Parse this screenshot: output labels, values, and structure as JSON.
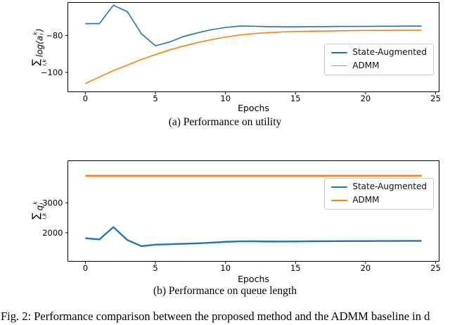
{
  "fig_caption": "Fig. 2:  Performance comparison between the proposed method and the ADMM baseline in d",
  "charts": [
    {
      "caption": "(a) Performance on utility",
      "ylabel": {
        "sigma": "∑",
        "sigma_sub": "i,k",
        "pre": "log(a",
        "sup": "k",
        "sub": "i",
        "post": ")"
      }
    },
    {
      "caption": "(b) Performance on queue length",
      "ylabel": {
        "sigma": "∑",
        "sigma_sub": "i,k",
        "pre": "q",
        "sup": "k",
        "sub": "i",
        "post": ""
      }
    }
  ],
  "chart_data": [
    {
      "type": "line",
      "title": "(a) Performance on utility",
      "xlabel": "Epochs",
      "ylabel": "sum_{i,k} log(a_i^k)",
      "x": [
        0,
        1,
        2,
        3,
        4,
        5,
        6,
        7,
        8,
        9,
        10,
        11,
        12,
        13,
        14,
        15,
        16,
        17,
        18,
        19,
        20,
        21,
        22,
        23,
        24
      ],
      "series": [
        {
          "name": "State-Augmented",
          "color": "#1f77b4",
          "linewidth": 1.6,
          "values": [
            -73.5,
            -73.5,
            -63.5,
            -67,
            -79,
            -85.5,
            -83.5,
            -80.5,
            -78.5,
            -76.8,
            -75.6,
            -74.8,
            -74.9,
            -75.1,
            -75.2,
            -75.2,
            -75.1,
            -75.1,
            -75,
            -75,
            -75,
            -74.9,
            -74.9,
            -74.8,
            -74.8
          ]
        },
        {
          "name": "ADMM",
          "color": "#ff7f0e",
          "linewidth": 1.6,
          "values": [
            -106,
            -102.5,
            -99,
            -96,
            -93,
            -90.3,
            -87.8,
            -85.7,
            -83.8,
            -82.2,
            -80.8,
            -79.7,
            -78.9,
            -78.4,
            -78,
            -77.8,
            -77.6,
            -77.5,
            -77.4,
            -77.3,
            -77.2,
            -77.2,
            -77.1,
            -77.1,
            -77
          ]
        }
      ],
      "xlim": [
        -1.25,
        25.25
      ],
      "ylim": [
        -110.5,
        -62
      ],
      "xticks": [
        0,
        5,
        10,
        15,
        20,
        25
      ],
      "xtick_labels": [
        "0",
        "5",
        "10",
        "15",
        "20",
        "25"
      ],
      "yticks": [
        -80,
        -100
      ],
      "ytick_labels": [
        "−80",
        "−100"
      ],
      "grid": false,
      "legend_position": "center right"
    },
    {
      "type": "line",
      "title": "(b) Performance on queue length",
      "xlabel": "Epochs",
      "ylabel": "sum_{i,k} q_i^k",
      "x": [
        0,
        1,
        2,
        3,
        4,
        5,
        6,
        7,
        8,
        9,
        10,
        11,
        12,
        13,
        14,
        15,
        16,
        17,
        18,
        19,
        20,
        21,
        22,
        23,
        24
      ],
      "series": [
        {
          "name": "State-Augmented",
          "color": "#1f77b4",
          "linewidth": 2.4,
          "values": [
            1820,
            1780,
            2190,
            1760,
            1555,
            1605,
            1620,
            1635,
            1650,
            1672,
            1700,
            1715,
            1718,
            1712,
            1710,
            1714,
            1718,
            1720,
            1722,
            1724,
            1726,
            1728,
            1728,
            1730,
            1732
          ]
        },
        {
          "name": "ADMM",
          "color": "#ff7f0e",
          "linewidth": 2.4,
          "values": [
            3900,
            3900,
            3900,
            3900,
            3900,
            3900,
            3900,
            3900,
            3900,
            3900,
            3900,
            3900,
            3900,
            3900,
            3900,
            3900,
            3900,
            3900,
            3900,
            3900,
            3900,
            3900,
            3900,
            3900,
            3900
          ]
        }
      ],
      "xlim": [
        -1.25,
        25.25
      ],
      "ylim": [
        1050,
        4400
      ],
      "xticks": [
        0,
        5,
        10,
        15,
        20,
        25
      ],
      "xtick_labels": [
        "0",
        "5",
        "10",
        "15",
        "20",
        "25"
      ],
      "yticks": [
        2000,
        3000
      ],
      "ytick_labels": [
        "2000",
        "3000"
      ],
      "grid": false,
      "legend_position": "center right"
    }
  ]
}
